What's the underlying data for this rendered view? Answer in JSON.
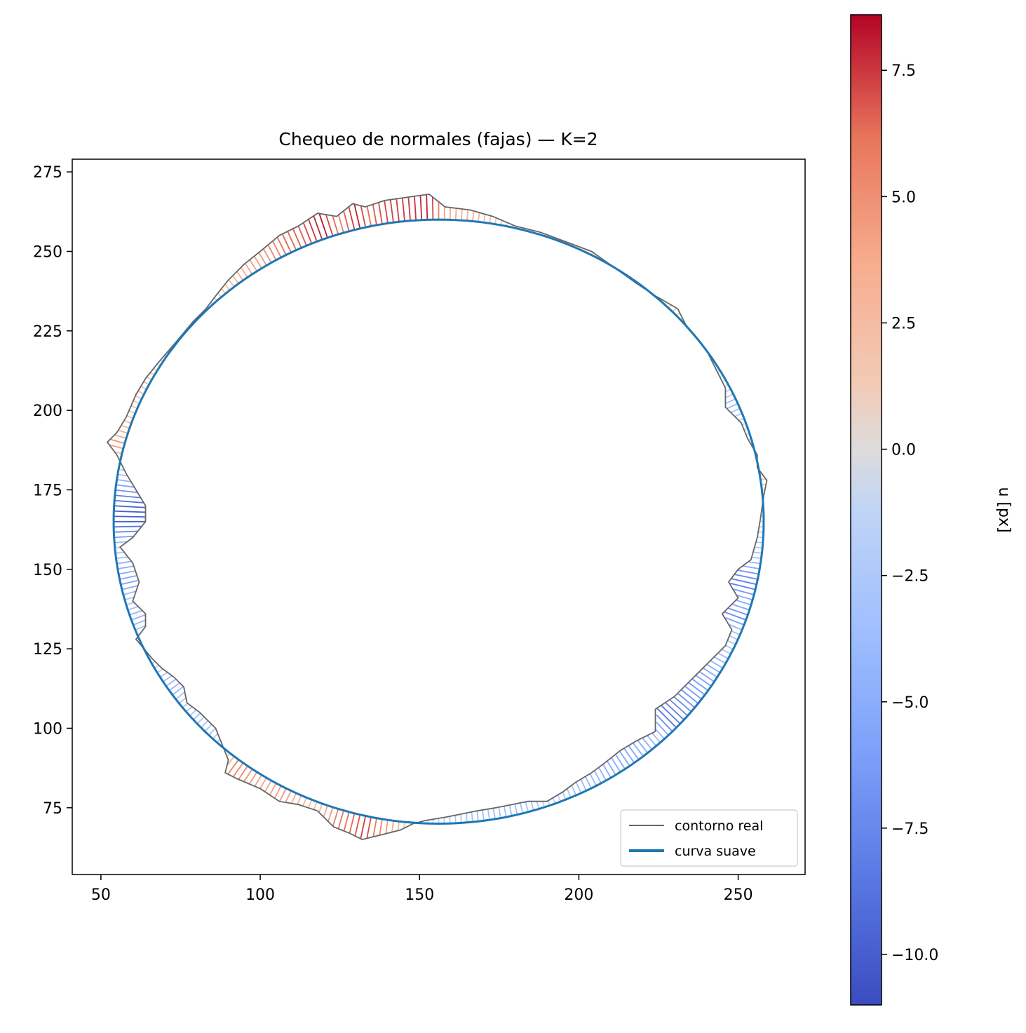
{
  "chart_data": {
    "type": "line",
    "title": "Chequeo de normales (fajas) — K=2",
    "xlabel": "",
    "ylabel": "",
    "xlim": [
      41,
      271
    ],
    "ylim": [
      54,
      279
    ],
    "x_ticks": [
      50,
      100,
      150,
      200,
      250
    ],
    "y_ticks": [
      75,
      100,
      125,
      150,
      175,
      200,
      225,
      250,
      275
    ],
    "aspect": "equal",
    "grid": false,
    "series": [
      {
        "name": "contorno real",
        "color": "#666666",
        "description_points": [
          [
            55,
            186
          ],
          [
            58,
            180
          ],
          [
            61,
            175
          ],
          [
            64,
            170
          ],
          [
            64,
            165
          ],
          [
            60,
            160
          ],
          [
            56,
            157
          ],
          [
            60,
            152
          ],
          [
            62,
            146
          ],
          [
            60,
            140
          ],
          [
            64,
            136
          ],
          [
            64,
            132
          ],
          [
            61,
            128
          ],
          [
            66,
            122
          ],
          [
            69,
            119
          ],
          [
            73,
            116
          ],
          [
            76,
            113
          ],
          [
            77,
            108
          ],
          [
            81,
            105
          ],
          [
            86,
            100
          ],
          [
            88,
            95
          ],
          [
            90,
            90
          ],
          [
            89,
            86
          ],
          [
            93,
            84
          ],
          [
            100,
            81
          ],
          [
            106,
            77
          ],
          [
            112,
            76
          ],
          [
            118,
            74
          ],
          [
            120,
            72
          ],
          [
            123,
            69
          ],
          [
            128,
            67
          ],
          [
            132,
            65
          ],
          [
            136,
            66
          ],
          [
            140,
            67
          ],
          [
            144,
            68
          ],
          [
            148,
            70
          ],
          [
            152,
            71
          ],
          [
            158,
            72
          ],
          [
            163,
            73
          ],
          [
            168,
            74
          ],
          [
            174,
            75
          ],
          [
            179,
            76
          ],
          [
            184,
            77
          ],
          [
            190,
            77
          ],
          [
            195,
            80
          ],
          [
            199,
            83
          ],
          [
            204,
            86
          ],
          [
            208,
            89
          ],
          [
            213,
            93
          ],
          [
            218,
            96
          ],
          [
            224,
            99
          ],
          [
            224,
            106
          ],
          [
            230,
            110
          ],
          [
            236,
            116
          ],
          [
            240,
            120
          ],
          [
            246,
            126
          ],
          [
            248,
            131
          ],
          [
            245,
            136
          ],
          [
            250,
            141
          ],
          [
            247,
            146
          ],
          [
            250,
            150
          ],
          [
            254,
            153
          ],
          [
            256,
            160
          ],
          [
            257,
            166
          ],
          [
            258,
            173
          ],
          [
            259,
            178
          ],
          [
            256,
            182
          ],
          [
            256,
            186
          ],
          [
            253,
            191
          ],
          [
            251,
            196
          ],
          [
            246,
            201
          ],
          [
            246,
            207
          ],
          [
            243,
            213
          ],
          [
            240,
            219
          ],
          [
            234,
            226
          ],
          [
            231,
            232
          ],
          [
            224,
            236
          ],
          [
            218,
            240
          ],
          [
            211,
            245
          ],
          [
            204,
            250
          ],
          [
            196,
            253
          ],
          [
            188,
            256
          ],
          [
            180,
            258
          ],
          [
            173,
            261
          ],
          [
            166,
            263
          ],
          [
            158,
            264
          ],
          [
            153,
            268
          ],
          [
            146,
            267
          ],
          [
            139,
            266
          ],
          [
            133,
            264
          ],
          [
            129,
            265
          ],
          [
            124,
            261
          ],
          [
            118,
            262
          ],
          [
            112,
            258
          ],
          [
            106,
            255
          ],
          [
            100,
            250
          ],
          [
            95,
            246
          ],
          [
            90,
            241
          ],
          [
            86,
            236
          ],
          [
            83,
            232
          ],
          [
            79,
            228
          ],
          [
            74,
            222
          ],
          [
            68,
            215
          ],
          [
            64,
            210
          ],
          [
            61,
            205
          ],
          [
            58,
            198
          ],
          [
            55,
            193
          ],
          [
            52,
            190
          ],
          [
            55,
            186
          ]
        ]
      },
      {
        "name": "curva suave",
        "color": "#1f77b4",
        "center": [
          156,
          165
        ],
        "radii": [
          102,
          95
        ]
      }
    ],
    "colorbar": {
      "label": "u [px]",
      "colormap": "coolwarm",
      "vmin": -11,
      "vmax": 8.6,
      "ticks": [
        -10.0,
        -7.5,
        -5.0,
        -2.5,
        0.0,
        2.5,
        5.0,
        7.5
      ],
      "tick_labels": [
        "−10.0",
        "−7.5",
        "−5.0",
        "−2.5",
        "0.0",
        "2.5",
        "5.0",
        "7.5"
      ]
    },
    "legend": {
      "placement": "lower-right",
      "entries": [
        "contorno real",
        "curva suave"
      ]
    }
  }
}
